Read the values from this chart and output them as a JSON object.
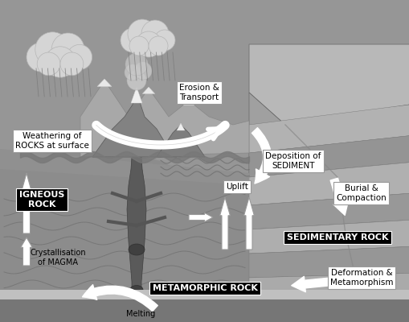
{
  "bg_color": "#898989",
  "sky_color": "#909090",
  "rock_block_color": "#aaaaaa",
  "rock_block_edge": "#888888",
  "underground_color": "#787878",
  "labels": {
    "weathering": "Weathering of\nROCKS at surface",
    "erosion": "Erosion &\nTransport",
    "deposition": "Deposition of\nSEDIMENT",
    "burial": "Burial &\nCompaction",
    "sedimentary": "SEDIMENTARY ROCK",
    "deformation": "Deformation &\nMetamorphism",
    "metamorphic": "METAMORPHIC ROCK",
    "uplift": "Uplift",
    "igneous": "IGNEOUS\nROCK",
    "crystallisation": "Crystallisation\nof MAGMA",
    "melting": "Melting"
  }
}
